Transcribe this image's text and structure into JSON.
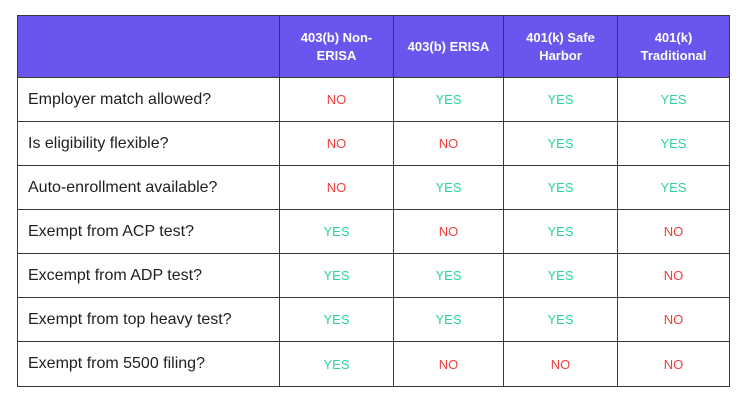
{
  "colors": {
    "header_bg": "#6b55ef",
    "yes": "#2fd3a3",
    "no": "#f23d3d",
    "border": "#3a3a3a"
  },
  "headers": [
    "",
    "403(b) Non-ERISA",
    "403(b) ERISA",
    "401(k) Safe Harbor",
    "401(k) Traditional"
  ],
  "rows": [
    {
      "label": "Employer match allowed?",
      "values": [
        "NO",
        "YES",
        "YES",
        "YES"
      ]
    },
    {
      "label": "Is eligibility flexible?",
      "values": [
        "NO",
        "NO",
        "YES",
        "YES"
      ]
    },
    {
      "label": "Auto-enrollment available?",
      "values": [
        "NO",
        "YES",
        "YES",
        "YES"
      ]
    },
    {
      "label": "Exempt from ACP test?",
      "values": [
        "YES",
        "NO",
        "YES",
        "NO"
      ]
    },
    {
      "label": "Excempt from ADP test?",
      "values": [
        "YES",
        "YES",
        "YES",
        "NO"
      ]
    },
    {
      "label": "Exempt from top heavy test?",
      "values": [
        "YES",
        "YES",
        "YES",
        "NO"
      ]
    },
    {
      "label": "Exempt from 5500 filing?",
      "values": [
        "YES",
        "NO",
        "NO",
        "NO"
      ]
    }
  ]
}
